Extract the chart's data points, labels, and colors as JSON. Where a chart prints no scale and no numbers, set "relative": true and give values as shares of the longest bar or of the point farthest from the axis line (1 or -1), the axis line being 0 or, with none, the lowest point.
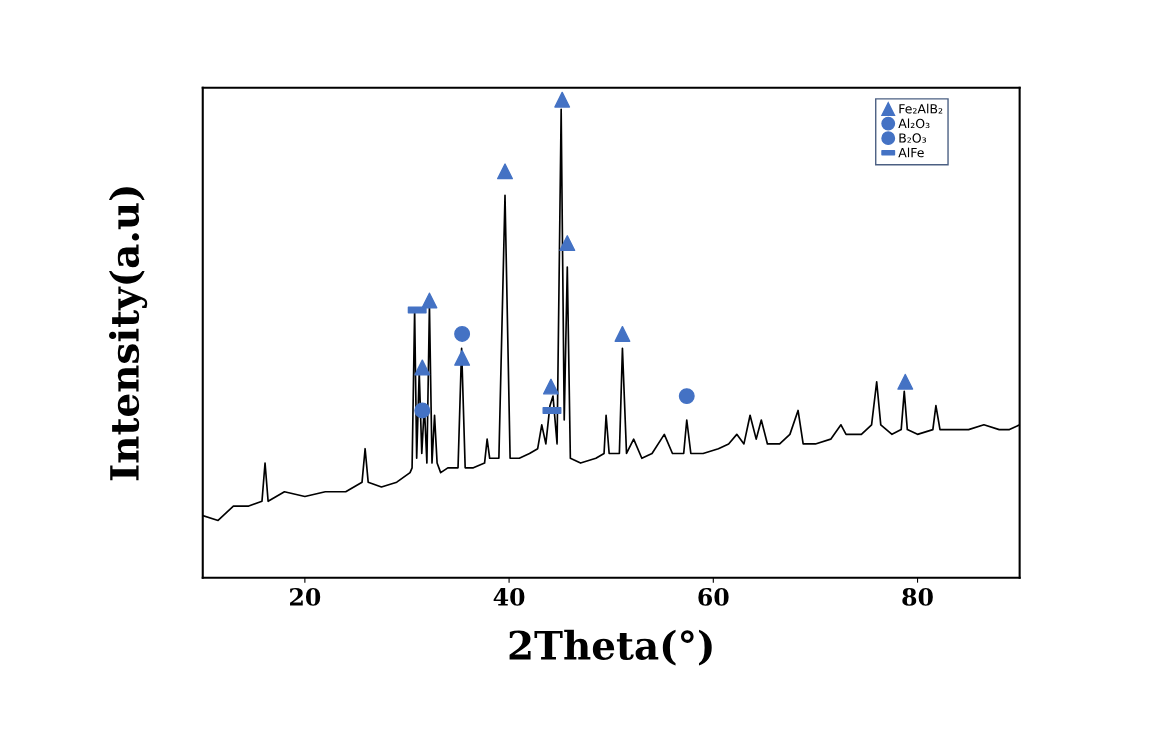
{
  "chart_data": {
    "type": "line",
    "xlabel": "2Theta(°)",
    "ylabel": "Intensity(a.u)",
    "relative": true,
    "xlim": [
      10,
      90
    ],
    "xticks": [
      20,
      40,
      60,
      80
    ],
    "tick_labels": "x",
    "grid": false,
    "legend": "top right",
    "marker": "none",
    "line_style": "solid",
    "series": [
      {
        "color": "#000000",
        "x": [
          10.0,
          11.5,
          13,
          14.5,
          15.8,
          16.1,
          16.4,
          18,
          20,
          22,
          24,
          25.6,
          25.9,
          26.2,
          27.5,
          29,
          30.3,
          30.5,
          30.75,
          30.95,
          31.2,
          31.45,
          31.7,
          31.95,
          32.2,
          32.45,
          32.7,
          32.95,
          33.3,
          34,
          35.0,
          35.35,
          35.7,
          36.5,
          37.6,
          37.85,
          38.1,
          39.0,
          39.6,
          40.1,
          41,
          42,
          42.8,
          43.2,
          43.6,
          44.0,
          44.3,
          44.7,
          45.1,
          45.4,
          45.7,
          46.0,
          47,
          48.5,
          49.3,
          49.5,
          49.8,
          50.8,
          51.1,
          51.5,
          52.2,
          53,
          54,
          55.2,
          56,
          57.1,
          57.4,
          57.8,
          59,
          60.5,
          61.5,
          62.3,
          63,
          63.6,
          64.2,
          64.7,
          65.3,
          66.5,
          67.5,
          68.3,
          68.8,
          70,
          71.5,
          72.5,
          73,
          74.5,
          75.5,
          76.0,
          76.4,
          77.5,
          78.4,
          78.7,
          79.0,
          80,
          81.5,
          81.8,
          82.2,
          83.5,
          85,
          86.5,
          88,
          89,
          90
        ],
        "values": [
          0.13,
          0.12,
          0.15,
          0.15,
          0.16,
          0.24,
          0.16,
          0.18,
          0.17,
          0.18,
          0.18,
          0.2,
          0.27,
          0.2,
          0.19,
          0.2,
          0.22,
          0.23,
          0.56,
          0.25,
          0.43,
          0.26,
          0.36,
          0.24,
          0.57,
          0.24,
          0.34,
          0.24,
          0.22,
          0.23,
          0.23,
          0.48,
          0.23,
          0.23,
          0.24,
          0.29,
          0.25,
          0.25,
          0.8,
          0.25,
          0.25,
          0.26,
          0.27,
          0.32,
          0.28,
          0.36,
          0.38,
          0.28,
          0.98,
          0.33,
          0.65,
          0.25,
          0.24,
          0.25,
          0.26,
          0.34,
          0.26,
          0.26,
          0.48,
          0.26,
          0.29,
          0.25,
          0.26,
          0.3,
          0.26,
          0.26,
          0.33,
          0.26,
          0.26,
          0.27,
          0.28,
          0.3,
          0.28,
          0.34,
          0.29,
          0.33,
          0.28,
          0.28,
          0.3,
          0.35,
          0.28,
          0.28,
          0.29,
          0.32,
          0.3,
          0.3,
          0.32,
          0.41,
          0.32,
          0.3,
          0.31,
          0.39,
          0.31,
          0.3,
          0.31,
          0.36,
          0.31,
          0.31,
          0.31,
          0.32,
          0.31,
          0.31,
          0.32
        ]
      },
      {
        "type": "scatter",
        "name": "Fe₂AlB₂",
        "color": "#4472c4",
        "marker": "triangle",
        "x": [
          31.5,
          32.2,
          35.4,
          39.6,
          44.1,
          45.2,
          45.7,
          51.1,
          78.8
        ],
        "values": [
          0.44,
          0.58,
          0.46,
          0.85,
          0.4,
          1.0,
          0.7,
          0.51,
          0.41
        ]
      },
      {
        "type": "scatter",
        "name": "Al₂O₃",
        "color": "#4472c4",
        "marker": "circle",
        "x": [
          35.4,
          57.4
        ],
        "values": [
          0.51,
          0.38
        ]
      },
      {
        "type": "scatter",
        "name": "B₂O₃",
        "color": "#4472c4",
        "marker": "circle",
        "x": [
          31.5
        ],
        "values": [
          0.35
        ]
      },
      {
        "type": "scatter",
        "name": "AlFe",
        "color": "#4472c4",
        "marker": "square",
        "x": [
          31.0,
          44.2
        ],
        "values": [
          0.56,
          0.35
        ]
      }
    ]
  }
}
